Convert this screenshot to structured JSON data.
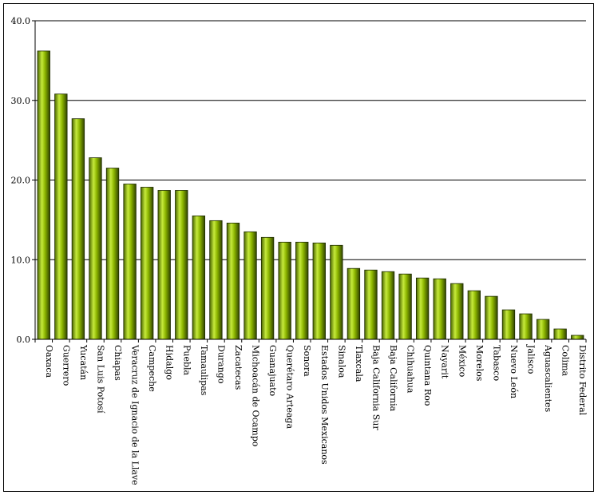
{
  "chart_data": {
    "type": "bar",
    "title": "",
    "xlabel": "",
    "ylabel": "",
    "ylim": [
      0,
      40
    ],
    "yticks": [
      "0.0",
      "10.0",
      "20.0",
      "30.0",
      "40.0"
    ],
    "grid": true,
    "legend": "none",
    "bar_color": "#8db600",
    "categories": [
      "Oaxaca",
      "Guerrero",
      "Yucatán",
      "San Luis Potosí",
      "Chiapas",
      "Veracruz de Ignacio de la Llave",
      "Campeche",
      "Hidalgo",
      "Puebla",
      "Tamaulipas",
      "Durango",
      "Zacatecas",
      "Michoacán de Ocampo",
      "Guanajuato",
      "Querétaro Arteaga",
      "Sonora",
      "Estados Unidos Mexicanos",
      "Sinaloa",
      "Tlaxcala",
      "Baja California Sur",
      "Baja California",
      "Chihuahua",
      "Quintana Roo",
      "Nayarit",
      "México",
      "Morelos",
      "Tabasco",
      "Nuevo León",
      "Jalisco",
      "Aguascalientes",
      "Colima",
      "Distrito Federal"
    ],
    "values": [
      36.2,
      30.8,
      27.7,
      22.8,
      21.5,
      19.5,
      19.1,
      18.7,
      18.7,
      15.5,
      14.9,
      14.6,
      13.5,
      12.8,
      12.2,
      12.2,
      12.1,
      11.8,
      8.9,
      8.7,
      8.5,
      8.2,
      7.7,
      7.6,
      7.0,
      6.1,
      5.4,
      3.7,
      3.2,
      2.5,
      1.3,
      0.5
    ]
  }
}
